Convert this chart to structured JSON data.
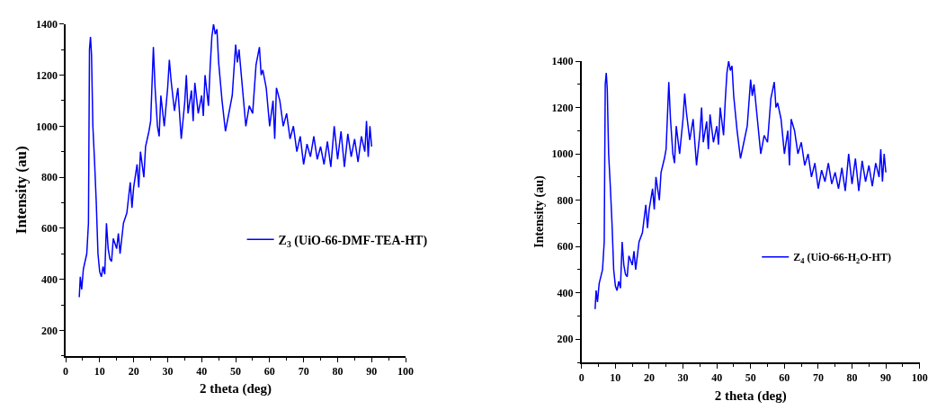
{
  "chart_data": [
    {
      "type": "line",
      "xlabel": "2 theta (deg)",
      "ylabel": "Intensity (au)",
      "xlim": [
        0,
        100
      ],
      "xticks": [
        0,
        10,
        20,
        30,
        40,
        50,
        60,
        70,
        80,
        90,
        100
      ],
      "ylim": [
        100,
        1400
      ],
      "yticks": [
        200,
        400,
        600,
        800,
        1000,
        1200,
        1400
      ],
      "legend": "right",
      "line_style": "solid",
      "series": [
        {
          "name": "Z$_{3}$ (UiO-66-DMF-TEA-HT)",
          "color": "#0000ff",
          "x": [
            4,
            4.3,
            4.7,
            5.2,
            5.7,
            6.2,
            6.7,
            7,
            7.3,
            7.6,
            8,
            8.5,
            9,
            9.5,
            10,
            10.5,
            11,
            11.5,
            12,
            12.5,
            13,
            13.5,
            14,
            15,
            15.5,
            16,
            17,
            18,
            19,
            19.5,
            20,
            21,
            21.5,
            22,
            23,
            23.5,
            24.5,
            25,
            25.5,
            25.8,
            26.3,
            27,
            27.5,
            28,
            29,
            30,
            30.5,
            31,
            32,
            33,
            34,
            35,
            35.5,
            36,
            37,
            37.5,
            38,
            39,
            40,
            40.5,
            41,
            42,
            42.5,
            43,
            43.5,
            44,
            44.5,
            45,
            46,
            47,
            48,
            49,
            50,
            50.5,
            51,
            52,
            53,
            54,
            55,
            56,
            57,
            57.5,
            58,
            59,
            60,
            61,
            61.5,
            62,
            63,
            64,
            65,
            66,
            67,
            68,
            69,
            70,
            71,
            72,
            73,
            74,
            75,
            76,
            77,
            78,
            79,
            80,
            81,
            82,
            83,
            84,
            85,
            86,
            87,
            88,
            88.5,
            89,
            89.5,
            90
          ],
          "values": [
            330,
            410,
            360,
            440,
            470,
            500,
            620,
            1300,
            1350,
            1280,
            1000,
            860,
            700,
            500,
            430,
            410,
            450,
            420,
            620,
            520,
            480,
            470,
            560,
            520,
            580,
            500,
            620,
            660,
            780,
            680,
            760,
            850,
            760,
            900,
            800,
            920,
            980,
            1020,
            1200,
            1310,
            1150,
            1000,
            960,
            1120,
            1000,
            1150,
            1260,
            1180,
            1060,
            1150,
            950,
            1090,
            1200,
            1050,
            1140,
            1020,
            1170,
            1050,
            1120,
            1040,
            1200,
            1080,
            1230,
            1350,
            1400,
            1360,
            1380,
            1250,
            1100,
            980,
            1050,
            1120,
            1320,
            1250,
            1300,
            1150,
            1000,
            1080,
            1050,
            1240,
            1310,
            1200,
            1220,
            1150,
            1000,
            1100,
            950,
            1150,
            1100,
            1000,
            1050,
            950,
            1000,
            900,
            960,
            850,
            930,
            880,
            960,
            870,
            920,
            850,
            940,
            840,
            1000,
            870,
            980,
            840,
            970,
            880,
            950,
            860,
            960,
            900,
            1020,
            880,
            1000,
            920
          ]
        }
      ]
    },
    {
      "type": "line",
      "xlabel": "2 theta (deg)",
      "ylabel": "Intensity (au)",
      "xlim": [
        0,
        100
      ],
      "xticks": [
        0,
        10,
        20,
        30,
        40,
        50,
        60,
        70,
        80,
        90,
        100
      ],
      "ylim": [
        100,
        1400
      ],
      "yticks": [
        200,
        400,
        600,
        800,
        1000,
        1200,
        1400
      ],
      "legend": "right",
      "line_style": "solid",
      "series": [
        {
          "name": "Z$_{4}$ (UiO-66-H$_{2}$O-HT)",
          "color": "#0000ff",
          "x": [
            4,
            4.3,
            4.7,
            5.2,
            5.7,
            6.2,
            6.7,
            7,
            7.3,
            7.6,
            8,
            8.5,
            9,
            9.5,
            10,
            10.5,
            11,
            11.5,
            12,
            12.5,
            13,
            13.5,
            14,
            15,
            15.5,
            16,
            17,
            18,
            19,
            19.5,
            20,
            21,
            21.5,
            22,
            23,
            23.5,
            24.5,
            25,
            25.5,
            25.8,
            26.3,
            27,
            27.5,
            28,
            29,
            30,
            30.5,
            31,
            32,
            33,
            34,
            35,
            35.5,
            36,
            37,
            37.5,
            38,
            39,
            40,
            40.5,
            41,
            42,
            42.5,
            43,
            43.5,
            44,
            44.5,
            45,
            46,
            47,
            48,
            49,
            50,
            50.5,
            51,
            52,
            53,
            54,
            55,
            56,
            57,
            57.5,
            58,
            59,
            60,
            61,
            61.5,
            62,
            63,
            64,
            65,
            66,
            67,
            68,
            69,
            70,
            71,
            72,
            73,
            74,
            75,
            76,
            77,
            78,
            79,
            80,
            81,
            82,
            83,
            84,
            85,
            86,
            87,
            88,
            88.5,
            89,
            89.5,
            90
          ],
          "values": [
            330,
            410,
            360,
            440,
            470,
            500,
            620,
            1300,
            1350,
            1280,
            1000,
            860,
            700,
            500,
            430,
            410,
            450,
            420,
            620,
            520,
            480,
            470,
            560,
            520,
            580,
            500,
            620,
            660,
            780,
            680,
            760,
            850,
            760,
            900,
            800,
            920,
            980,
            1020,
            1200,
            1310,
            1150,
            1000,
            960,
            1120,
            1000,
            1150,
            1260,
            1180,
            1060,
            1150,
            950,
            1090,
            1200,
            1050,
            1140,
            1020,
            1170,
            1050,
            1120,
            1040,
            1200,
            1080,
            1230,
            1350,
            1400,
            1360,
            1380,
            1250,
            1100,
            980,
            1050,
            1120,
            1320,
            1250,
            1300,
            1150,
            1000,
            1080,
            1050,
            1240,
            1310,
            1200,
            1220,
            1150,
            1000,
            1100,
            950,
            1150,
            1100,
            1000,
            1050,
            950,
            1000,
            900,
            960,
            850,
            930,
            880,
            960,
            870,
            920,
            850,
            940,
            840,
            1000,
            870,
            980,
            840,
            970,
            880,
            950,
            860,
            960,
            900,
            1020,
            880,
            1000,
            920
          ]
        }
      ]
    }
  ]
}
